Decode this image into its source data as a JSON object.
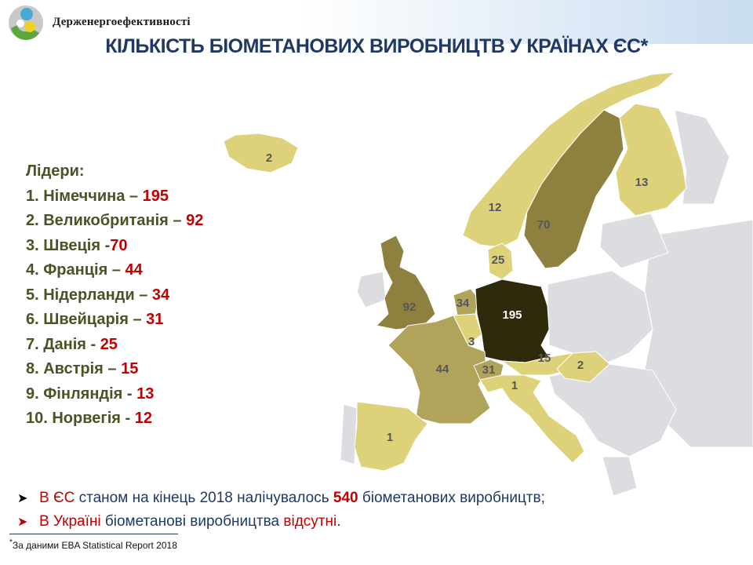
{
  "header": {
    "organization": "Держенергоефективності",
    "title": "КІЛЬКІСТЬ БІОМЕТАНОВИХ ВИРОБНИЦТВ У КРАЇНАХ ЄС*"
  },
  "leaders": {
    "heading": "Лідери:",
    "items": [
      {
        "name": "1. Німеччина – ",
        "value": "195"
      },
      {
        "name": "2. Великобританія – ",
        "value": "92"
      },
      {
        "name": "3. Швеція -",
        "value": "70"
      },
      {
        "name": "4. Франція – ",
        "value": "44"
      },
      {
        "name": "5. Нідерланди – ",
        "value": "34"
      },
      {
        "name": "6. Швейцарія – ",
        "value": "31"
      },
      {
        "name": "7. Данія - ",
        "value": "25"
      },
      {
        "name": "8. Австрія – ",
        "value": "15"
      },
      {
        "name": "9. Фінляндія - ",
        "value": "13"
      },
      {
        "name": "10.  Норвегія - ",
        "value": "12"
      }
    ]
  },
  "map": {
    "colors": {
      "none": "#dcdde0",
      "low": "#ddd27a",
      "mid": "#b0a35a",
      "high": "#8e8140",
      "top": "#2f2a0c"
    },
    "countries": [
      {
        "id": "iceland",
        "value": "2"
      },
      {
        "id": "norway",
        "value": "12"
      },
      {
        "id": "sweden",
        "value": "70"
      },
      {
        "id": "finland",
        "value": "13"
      },
      {
        "id": "denmark",
        "value": "25"
      },
      {
        "id": "uk",
        "value": "92"
      },
      {
        "id": "netherlands",
        "value": "34"
      },
      {
        "id": "germany",
        "value": "195"
      },
      {
        "id": "belgium",
        "value": "3"
      },
      {
        "id": "france",
        "value": "44"
      },
      {
        "id": "switzerland",
        "value": "31"
      },
      {
        "id": "austria",
        "value": "15"
      },
      {
        "id": "hungary",
        "value": "2"
      },
      {
        "id": "italy",
        "value": "1"
      },
      {
        "id": "spain",
        "value": "1"
      }
    ]
  },
  "bullets": {
    "b1": {
      "red": "В ЄС",
      "text1": " станом на кінець 2018  налічувалось ",
      "num": "540",
      "text2": " біометанових виробництв;"
    },
    "b2": {
      "red": "В Україні",
      "text1": " біометанові виробництва ",
      "red2": "відсутні",
      "end": "."
    }
  },
  "footnote": {
    "mark": "*",
    "text": "За даними EBA Statistical Report 2018"
  }
}
